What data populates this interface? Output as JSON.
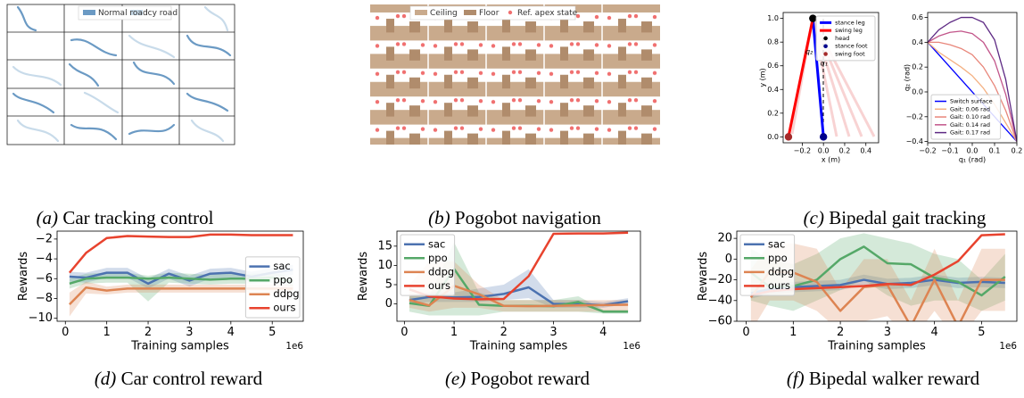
{
  "captions": [
    {
      "tag": "(a)",
      "text": "Car tracking control"
    },
    {
      "tag": "(b)",
      "text": "Pogobot navigation"
    },
    {
      "tag": "(c)",
      "text": "Bipedal gait tracking"
    },
    {
      "tag": "(d)",
      "text": "Car control reward"
    },
    {
      "tag": "(e)",
      "text": "Pogobot reward"
    },
    {
      "tag": "(f)",
      "text": "Bipedal walker reward"
    }
  ],
  "illustrations": {
    "car": {
      "legend": [
        "Normal road",
        "Icy road"
      ]
    },
    "pogobot": {
      "legend": [
        "Ceiling",
        "Floor",
        "Ref. apex state"
      ]
    }
  },
  "chart_data": [
    {
      "type": "line",
      "xlabel": "x (m)",
      "ylabel": "y (m)",
      "xlim": [
        -0.38,
        0.52
      ],
      "ylim": [
        -0.05,
        1.05
      ],
      "xticks": [
        {
          "value": -0.2,
          "label": "−0.2"
        },
        {
          "value": 0,
          "label": "0.0"
        },
        0.2,
        0.4
      ],
      "yticks": [
        {
          "value": 0,
          "label": "0.0"
        },
        0.2,
        0.4,
        0.6,
        0.8,
        {
          "value": 1,
          "label": "1.0"
        }
      ],
      "legend": "upper right",
      "annotations": [
        "q₂",
        "q₁"
      ],
      "series": [
        {
          "name": "stance leg",
          "color": "#0000ff",
          "x": [
            0,
            -0.1
          ],
          "values": [
            0,
            1.0
          ]
        },
        {
          "name": "swing leg",
          "color": "#ff0000",
          "x": [
            -0.33,
            -0.1
          ],
          "values": [
            0,
            1.0
          ]
        },
        {
          "name": "head",
          "color": "#000000",
          "marker": "point",
          "x": [
            -0.1
          ],
          "values": [
            1.0
          ]
        },
        {
          "name": "stance foot",
          "color": "#00008b",
          "marker": "point",
          "x": [
            0
          ],
          "values": [
            0
          ]
        },
        {
          "name": "swing foot",
          "color": "#a52a2a",
          "marker": "point",
          "x": [
            -0.33
          ],
          "values": [
            0
          ]
        }
      ]
    },
    {
      "type": "line",
      "xlabel": "q₁ (rad)",
      "ylabel": "q₂ (rad)",
      "xlim": [
        -0.2,
        0.2
      ],
      "ylim": [
        -0.41,
        0.64
      ],
      "xticks": [
        {
          "value": -0.2,
          "label": "−0.2"
        },
        {
          "value": -0.1,
          "label": "−0.1"
        },
        {
          "value": 0,
          "label": "0.0"
        },
        0.1,
        0.2
      ],
      "yticks": [
        {
          "value": -0.4,
          "label": "−0.4"
        },
        {
          "value": -0.2,
          "label": "−0.2"
        },
        {
          "value": 0,
          "label": "0.0"
        },
        0.2,
        0.4,
        0.6
      ],
      "legend": "lower left",
      "x": [
        -0.2,
        -0.15,
        -0.1,
        -0.05,
        0,
        0.05,
        0.1,
        0.15,
        0.2
      ],
      "series": [
        {
          "name": "Switch surface",
          "color": "#0000ff",
          "x": [
            -0.2,
            0.2
          ],
          "values": [
            0.4,
            -0.4
          ]
        },
        {
          "name": "Gait: 0.06 rad",
          "color": "#f4b183",
          "values": [
            0.4,
            0.32,
            0.26,
            0.2,
            0.13,
            0.03,
            -0.1,
            -0.25,
            -0.4
          ]
        },
        {
          "name": "Gait: 0.10 rad",
          "color": "#e8867a",
          "values": [
            0.4,
            0.4,
            0.38,
            0.35,
            0.3,
            0.2,
            0.05,
            -0.15,
            -0.4
          ]
        },
        {
          "name": "Gait: 0.14 rad",
          "color": "#c2558a",
          "values": [
            0.4,
            0.45,
            0.48,
            0.49,
            0.47,
            0.4,
            0.25,
            -0.02,
            -0.4
          ]
        },
        {
          "name": "Gait: 0.17 rad",
          "color": "#5e2a84",
          "values": [
            0.4,
            0.5,
            0.56,
            0.6,
            0.6,
            0.56,
            0.42,
            0.1,
            -0.4
          ]
        }
      ]
    },
    {
      "type": "line",
      "xlabel": "Training samples",
      "ylabel": "Rewards",
      "x_offset_label": "1e6",
      "xlim": [
        -0.2,
        5.75
      ],
      "ylim": [
        -10.3,
        -1.2
      ],
      "xticks": [
        0,
        1,
        2,
        3,
        4,
        5
      ],
      "yticks": [
        {
          "value": -10,
          "label": "−10"
        },
        {
          "value": -8,
          "label": "−8"
        },
        {
          "value": -6,
          "label": "−6"
        },
        {
          "value": -4,
          "label": "−4"
        },
        {
          "value": -2,
          "label": "−2"
        }
      ],
      "legend": "lower right",
      "x": [
        0.1,
        0.5,
        1,
        1.5,
        2,
        2.5,
        3,
        3.5,
        4,
        4.5,
        5,
        5.5
      ],
      "series": [
        {
          "name": "sac",
          "color": "#4c72b0",
          "values": [
            -5.8,
            -5.9,
            -5.4,
            -5.4,
            -6.5,
            -5.5,
            -6.2,
            -5.5,
            -5.4,
            -5.8,
            -5.4,
            -5.1
          ],
          "lower": [
            -6.3,
            -6.4,
            -5.9,
            -5.9,
            -7.0,
            -6.0,
            -6.8,
            -6.0,
            -5.9,
            -6.3,
            -5.9,
            -5.6
          ],
          "upper": [
            -5.3,
            -5.4,
            -4.9,
            -4.9,
            -6.0,
            -5.0,
            -5.7,
            -5.0,
            -4.9,
            -5.3,
            -4.9,
            -4.6
          ]
        },
        {
          "name": "ppo",
          "color": "#55a868",
          "values": [
            -6.5,
            -6.0,
            -5.9,
            -5.9,
            -6.0,
            -5.9,
            -6.0,
            -6.1,
            -6.0,
            -6.0,
            -5.9,
            -6.3
          ],
          "lower": [
            -7.0,
            -6.5,
            -6.4,
            -6.4,
            -8.3,
            -6.4,
            -6.5,
            -6.6,
            -6.5,
            -6.5,
            -6.4,
            -6.8
          ],
          "upper": [
            -6.0,
            -5.5,
            -5.4,
            -5.4,
            -5.7,
            -5.4,
            -5.5,
            -5.6,
            -5.5,
            -5.5,
            -5.4,
            -5.8
          ]
        },
        {
          "name": "ddpg",
          "color": "#dd8452",
          "values": [
            -8.6,
            -6.9,
            -7.2,
            -7.0,
            -7.0,
            -7.0,
            -7.0,
            -7.0,
            -7.0,
            -7.0,
            -7.0,
            -7.0
          ],
          "lower": [
            -9.8,
            -7.5,
            -7.6,
            -7.4,
            -7.4,
            -7.4,
            -7.4,
            -7.4,
            -7.4,
            -7.4,
            -7.4,
            -7.4
          ],
          "upper": [
            -7.4,
            -6.3,
            -6.8,
            -6.6,
            -6.6,
            -6.6,
            -6.6,
            -6.6,
            -6.6,
            -6.6,
            -6.6,
            -6.6
          ]
        },
        {
          "name": "ours",
          "color": "#e8432e",
          "values": [
            -5.4,
            -3.4,
            -1.9,
            -1.7,
            -1.75,
            -1.8,
            -1.8,
            -1.55,
            -1.55,
            -1.6,
            -1.6,
            -1.6
          ]
        }
      ]
    },
    {
      "type": "line",
      "xlabel": "Training samples",
      "ylabel": "Rewards",
      "x_offset_label": "1e6",
      "xlim": [
        -0.15,
        4.75
      ],
      "ylim": [
        -4.5,
        18.9
      ],
      "xticks": [
        0,
        1,
        2,
        3,
        4
      ],
      "yticks": [
        0,
        5,
        10,
        15
      ],
      "legend": "upper left",
      "x": [
        0.1,
        0.5,
        1,
        1.5,
        2,
        2.5,
        3,
        3.5,
        4,
        4.5
      ],
      "series": [
        {
          "name": "sac",
          "color": "#4c72b0",
          "values": [
            1.0,
            1.8,
            1.7,
            1.8,
            2.6,
            4.3,
            0.0,
            0.0,
            -0.3,
            0.7
          ],
          "lower": [
            0,
            0.5,
            0.5,
            0.5,
            1,
            1.5,
            -1,
            -1,
            -1,
            0
          ],
          "upper": [
            2,
            3,
            3,
            4,
            5,
            9,
            1,
            1,
            0.5,
            1.5
          ]
        },
        {
          "name": "ppo",
          "color": "#55a868",
          "values": [
            0.2,
            -0.5,
            9.1,
            -0.2,
            -0.5,
            -0.5,
            -0.6,
            0.5,
            -2.0,
            -2.0
          ],
          "lower": [
            -2,
            -3,
            -3,
            -3,
            -2,
            -2,
            -2,
            -2,
            -2.5,
            -2.5
          ],
          "upper": [
            2,
            2,
            16,
            3,
            1,
            1,
            1,
            2,
            -1.5,
            -1.5
          ]
        },
        {
          "name": "ddpg",
          "color": "#dd8452",
          "values": [
            1.0,
            -0.4,
            4.7,
            2.5,
            -0.5,
            -0.6,
            -0.5,
            -0.4,
            -0.3,
            -0.2
          ],
          "lower": [
            -1,
            -2,
            -1,
            -1,
            -2,
            -2,
            -2,
            -2,
            -2,
            -2
          ],
          "upper": [
            5,
            11,
            11,
            5,
            1,
            1,
            1,
            1,
            1,
            1
          ]
        },
        {
          "name": "ours",
          "color": "#e8432e",
          "values": [
            3.8,
            2.0,
            1.4,
            1.2,
            1.3,
            7.2,
            18.2,
            18.3,
            18.3,
            18.5
          ]
        }
      ]
    },
    {
      "type": "line",
      "xlabel": "Training samples",
      "ylabel": "Rewards",
      "x_offset_label": "1e6",
      "xlim": [
        -0.2,
        5.75
      ],
      "ylim": [
        -60,
        27
      ],
      "xticks": [
        0,
        1,
        2,
        3,
        4,
        5
      ],
      "yticks": [
        {
          "value": -60,
          "label": "−60"
        },
        {
          "value": -40,
          "label": "−40"
        },
        {
          "value": -20,
          "label": "−20"
        },
        0,
        20
      ],
      "legend": "upper left",
      "x": [
        0.1,
        0.5,
        1,
        1.5,
        2,
        2.5,
        3,
        3.5,
        4,
        4.5,
        5,
        5.5
      ],
      "series": [
        {
          "name": "sac",
          "color": "#4c72b0",
          "values": [
            -33,
            -29,
            -27,
            -26,
            -25,
            -20,
            -24,
            -23,
            -20,
            -23,
            -22,
            -23
          ],
          "lower": [
            -38,
            -34,
            -32,
            -31,
            -30,
            -25,
            -29,
            -28,
            -25,
            -28,
            -27,
            -28
          ],
          "upper": [
            -28,
            -24,
            -22,
            -21,
            -20,
            -15,
            -19,
            -18,
            -15,
            -18,
            -17,
            -18
          ]
        },
        {
          "name": "ppo",
          "color": "#55a868",
          "values": [
            -13,
            -27,
            -26,
            -20,
            0,
            12,
            -4,
            -5,
            -18,
            -22,
            -35,
            -17
          ],
          "lower": [
            -40,
            -45,
            -50,
            -40,
            -30,
            -20,
            -35,
            -45,
            -40,
            -40,
            -50,
            -40
          ],
          "upper": [
            10,
            0,
            -5,
            5,
            20,
            25,
            20,
            15,
            5,
            0,
            -20,
            5
          ]
        },
        {
          "name": "ddpg",
          "color": "#dd8452",
          "values": [
            -37,
            -12,
            -13,
            -22,
            -50,
            -27,
            -25,
            -65,
            -20,
            -65,
            -20,
            -20
          ],
          "lower": [
            -70,
            -40,
            -40,
            -50,
            -70,
            -60,
            -55,
            -80,
            -50,
            -80,
            -50,
            -50
          ],
          "upper": [
            -10,
            15,
            15,
            10,
            -30,
            0,
            0,
            -40,
            10,
            -40,
            10,
            10
          ]
        },
        {
          "name": "ours",
          "color": "#e8432e",
          "values": [
            -35,
            -31,
            -29,
            -28,
            -27,
            -26,
            -24,
            -25,
            -15,
            -2,
            23,
            24
          ]
        }
      ]
    }
  ]
}
